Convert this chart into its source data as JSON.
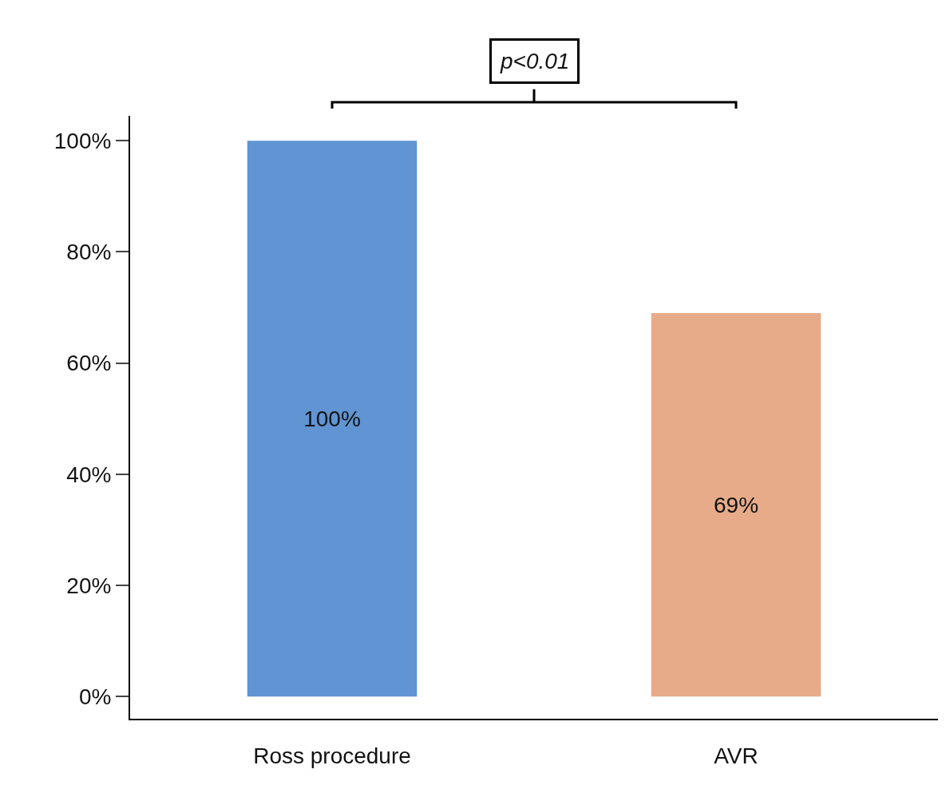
{
  "chart_data": {
    "type": "bar",
    "categories": [
      "Ross procedure",
      "AVR"
    ],
    "values": [
      100,
      69
    ],
    "colors": [
      "#6194d3",
      "#e8ab89"
    ],
    "value_labels": [
      "100%",
      "69%"
    ],
    "ylim": [
      -4,
      104.5
    ],
    "yticks": [
      {
        "value": 0,
        "label": "0%"
      },
      {
        "value": 20,
        "label": "20%"
      },
      {
        "value": 40,
        "label": "40%"
      },
      {
        "value": 60,
        "label": "60%"
      },
      {
        "value": 80,
        "label": "80%"
      },
      {
        "value": 100,
        "label": "100%"
      }
    ],
    "annotations": [
      "p<0.01"
    ]
  }
}
